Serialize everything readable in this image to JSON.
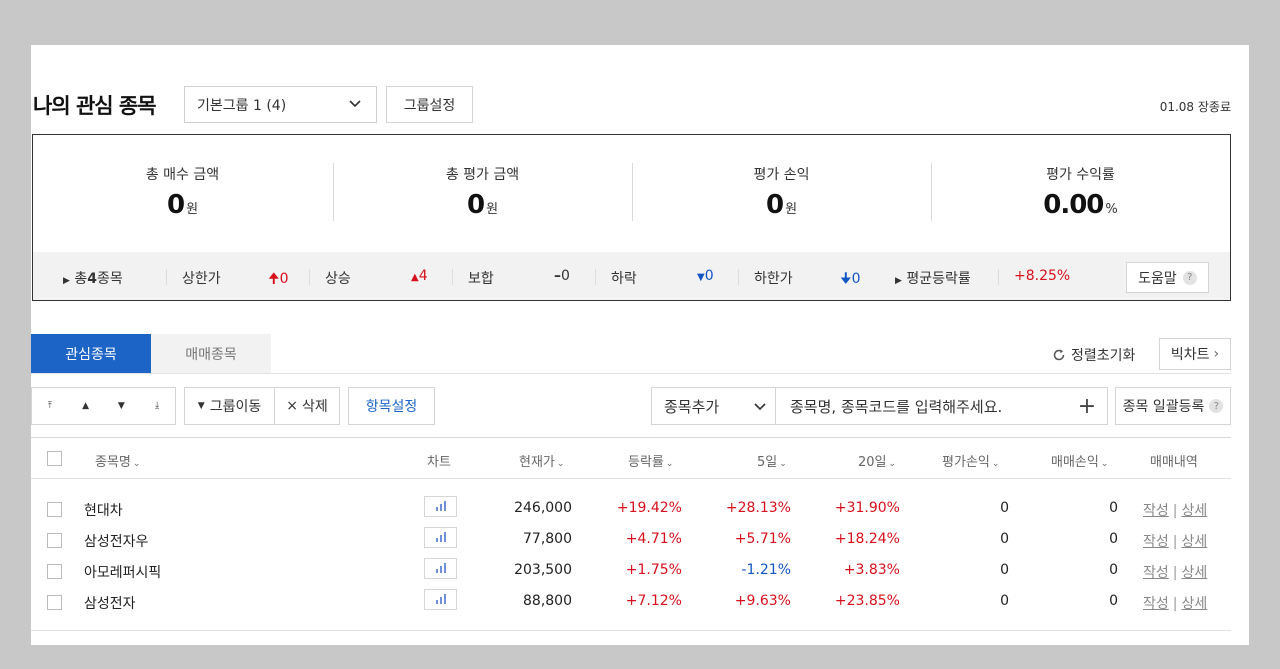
{
  "header": {
    "title": "나의 관심 종목",
    "group_select": "기본그룹 1 (4)",
    "group_setting": "그룹설정",
    "date_status": "01.08 장종료"
  },
  "summary": {
    "cols": [
      {
        "label": "총 매수 금액",
        "value": "0",
        "unit": "원"
      },
      {
        "label": "총 평가 금액",
        "value": "0",
        "unit": "원"
      },
      {
        "label": "평가 손익",
        "value": "0",
        "unit": "원"
      },
      {
        "label": "평가 수익률",
        "value": "0.00",
        "unit": "%"
      }
    ],
    "stats": {
      "total_label": "총",
      "total_count": "4",
      "total_suffix": "종목",
      "upper_limit_label": "상한가",
      "upper_limit_value": "0",
      "rise_label": "상승",
      "rise_value": "4",
      "flat_label": "보합",
      "flat_value": "0",
      "fall_label": "하락",
      "fall_value": "0",
      "lower_limit_label": "하한가",
      "lower_limit_value": "0",
      "avg_label": "평균등락률",
      "avg_value": "+8.25%"
    },
    "help_label": "도움말",
    "help_q": "?"
  },
  "tabs": {
    "watch": "관심종목",
    "trade": "매매종목"
  },
  "toolbar": {
    "reset_label": "정렬초기화",
    "bigchart_label": "빅차트",
    "group_move": "그룹이동",
    "delete": "삭제",
    "item_setting": "항목설정",
    "add_select": "종목추가",
    "search_placeholder": "종목명, 종목코드를 입력해주세요.",
    "bulk_label": "종목 일괄등록",
    "bulk_q": "?"
  },
  "table": {
    "headers": {
      "name": "종목명",
      "chart": "차트",
      "price": "현재가",
      "change": "등락률",
      "d5": "5일",
      "d20": "20일",
      "eval_pl": "평가손익",
      "trade_pl": "매매손익",
      "history": "매매내역"
    },
    "rows": [
      {
        "name": "현대차",
        "price": "246,000",
        "change": "+19.42%",
        "d5": "+28.13%",
        "d20": "+31.90%",
        "eval_pl": "0",
        "trade_pl": "0",
        "write": "작성",
        "detail": "상세"
      },
      {
        "name": "삼성전자우",
        "price": "77,800",
        "change": "+4.71%",
        "d5": "+5.71%",
        "d20": "+18.24%",
        "eval_pl": "0",
        "trade_pl": "0",
        "write": "작성",
        "detail": "상세"
      },
      {
        "name": "아모레퍼시픽",
        "price": "203,500",
        "change": "+1.75%",
        "d5": "-1.21%",
        "d20": "+3.83%",
        "eval_pl": "0",
        "trade_pl": "0",
        "write": "작성",
        "detail": "상세"
      },
      {
        "name": "삼성전자",
        "price": "88,800",
        "change": "+7.12%",
        "d5": "+9.63%",
        "d20": "+23.85%",
        "eval_pl": "0",
        "trade_pl": "0",
        "write": "작성",
        "detail": "상세"
      }
    ]
  },
  "colors": {
    "accent": "#1c64c6",
    "up": "#d6101c",
    "down": "#1256c4"
  }
}
